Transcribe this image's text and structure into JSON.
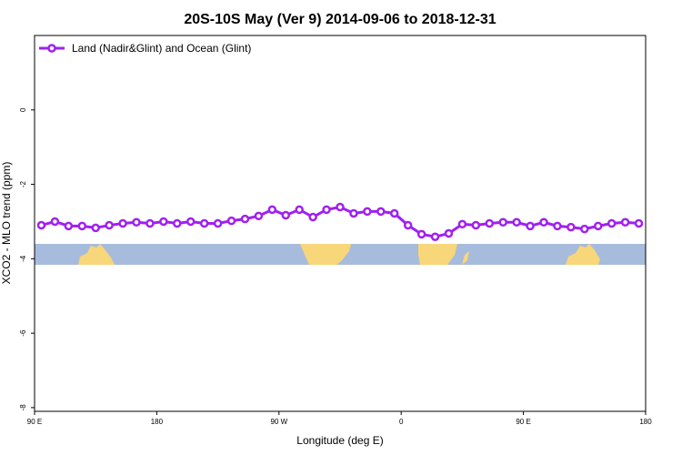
{
  "chart_data": {
    "type": "line",
    "title": "20S-10S May (Ver 9)   2014-09-06 to 2018-12-31",
    "x_label": "Longitude (deg E)",
    "y_label": "XCO2 - MLO trend (ppm)",
    "xlim": [
      90,
      540
    ],
    "ylim": [
      -8.1,
      2
    ],
    "xticks": [
      {
        "value": 90,
        "label": "90 E"
      },
      {
        "value": 180,
        "label": "180"
      },
      {
        "value": 270,
        "label": "90 W"
      },
      {
        "value": 360,
        "label": "0"
      },
      {
        "value": 450,
        "label": "90 E"
      },
      {
        "value": 540,
        "label": "180"
      }
    ],
    "yticks": [
      0,
      -2,
      -4,
      -6,
      -8
    ],
    "legend": "top-left",
    "x": [
      95,
      105,
      115,
      125,
      135,
      145,
      155,
      165,
      175,
      185,
      195,
      205,
      215,
      225,
      235,
      245,
      255,
      265,
      275,
      285,
      295,
      305,
      315,
      325,
      335,
      345,
      355,
      365,
      375,
      385,
      395,
      405,
      415,
      425,
      435,
      445,
      455,
      465,
      475,
      485,
      495,
      505,
      515,
      525,
      535
    ],
    "series": [
      {
        "name": "Land (Nadir&Glint) and Ocean (Glint)",
        "color": "#a020f0",
        "values": [
          -3.1,
          -3.0,
          -3.12,
          -3.12,
          -3.17,
          -3.1,
          -3.05,
          -3.02,
          -3.05,
          -3.0,
          -3.05,
          -3.0,
          -3.05,
          -3.05,
          -2.98,
          -2.93,
          -2.85,
          -2.68,
          -2.83,
          -2.68,
          -2.88,
          -2.68,
          -2.61,
          -2.78,
          -2.73,
          -2.73,
          -2.78,
          -3.1,
          -3.34,
          -3.41,
          -3.32,
          -3.07,
          -3.1,
          -3.05,
          -3.02,
          -3.02,
          -3.12,
          -3.02,
          -3.12,
          -3.15,
          -3.2,
          -3.12,
          -3.05,
          -3.02,
          -3.05
        ]
      }
    ]
  }
}
